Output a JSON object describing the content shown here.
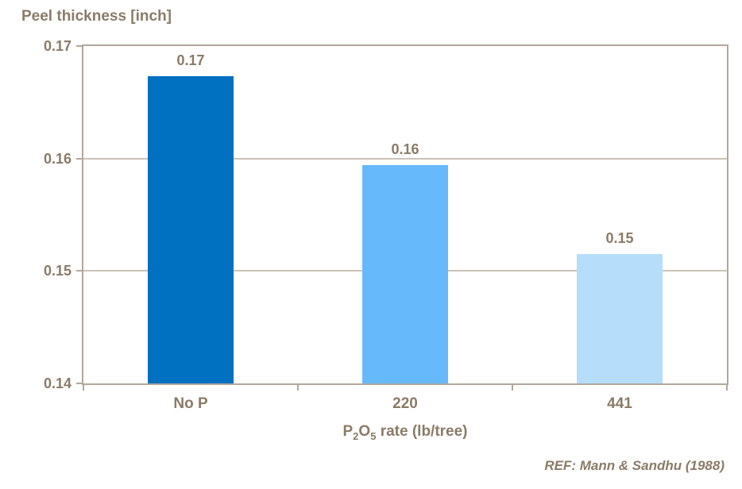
{
  "title": "Peel thickness [inch]",
  "reference": "REF: Mann & Sandhu (1988)",
  "colors": {
    "text": "#8A7B67",
    "plot_border": "#B2A79B",
    "gridline": "#CAC2B7",
    "background": "#FFFFFF"
  },
  "xaxis": {
    "title_parts": {
      "p": "P",
      "sub2": "2",
      "o": "O",
      "sub5": "5",
      "rest": " rate (lb/tree)"
    }
  },
  "chart_data": {
    "type": "bar",
    "title": "Peel thickness [inch]",
    "xlabel": "P2O5 rate (lb/tree)",
    "ylabel": "Peel thickness [inch]",
    "categories": [
      "No P",
      "220",
      "441"
    ],
    "values": [
      0.1673,
      0.1594,
      0.1515
    ],
    "value_labels": [
      "0.17",
      "0.16",
      "0.15"
    ],
    "bar_colors": [
      "#0070C0",
      "#66B9FA",
      "#B6DDFA"
    ],
    "ylim": [
      0.14,
      0.17
    ],
    "yticks": [
      0.14,
      0.15,
      0.16,
      0.17
    ],
    "ytick_labels": [
      "0.14",
      "0.15",
      "0.16",
      "0.17"
    ],
    "grid": "horizontal",
    "legend": "none",
    "annotation": "REF: Mann & Sandhu (1988)"
  }
}
